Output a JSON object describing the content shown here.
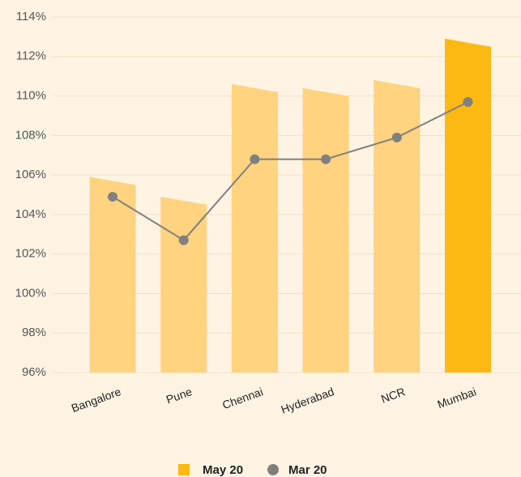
{
  "chart_data": {
    "type": "bar-line",
    "categories": [
      "Bangalore",
      "Pune",
      "Chennai",
      "Hyderabad",
      "NCR",
      "Mumbai"
    ],
    "series": [
      {
        "name": "May 20",
        "type": "bar",
        "color": "#fdb913",
        "colors": [
          "#ffd37f",
          "#ffd37f",
          "#ffd37f",
          "#ffd37f",
          "#ffd37f",
          "#fdb913"
        ],
        "values": [
          105.7,
          104.7,
          110.4,
          110.2,
          110.6,
          112.7
        ]
      },
      {
        "name": "Mar 20",
        "type": "line",
        "color": "#808080",
        "values": [
          104.9,
          102.7,
          106.8,
          106.8,
          107.9,
          109.7
        ]
      }
    ],
    "ylim": [
      96,
      114
    ],
    "yticks": [
      {
        "value": 96,
        "label": "96%"
      },
      {
        "value": 98,
        "label": "98%"
      },
      {
        "value": 100,
        "label": "100%"
      },
      {
        "value": 102,
        "label": "102%"
      },
      {
        "value": 104,
        "label": "104%"
      },
      {
        "value": 106,
        "label": "106%"
      },
      {
        "value": 108,
        "label": "108%"
      },
      {
        "value": 110,
        "label": "110%"
      },
      {
        "value": 112,
        "label": "112%"
      },
      {
        "value": 114,
        "label": "114%"
      }
    ],
    "grid": true,
    "legend": "bottom"
  }
}
